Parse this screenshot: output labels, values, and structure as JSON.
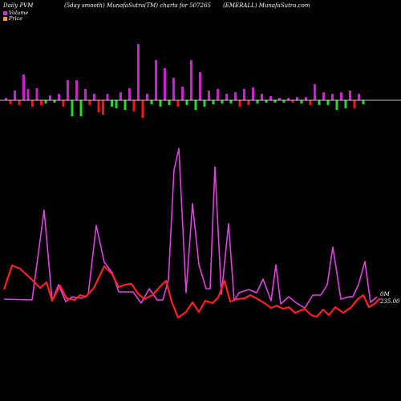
{
  "header": {
    "left": "Daily PVM",
    "center": "(5day smooth) MunafaSutra(TM) charts for 507265",
    "right": "(EMERALL) MunafaSutra.com"
  },
  "legend": {
    "volume_label": "Volume",
    "volume_color": "#cc33cc",
    "price_label": "Price",
    "price_color": "#ff9933"
  },
  "colors": {
    "background": "#000000",
    "volume_line": "#dd44dd",
    "price_line": "#ff2222",
    "bar_up": "#cc22cc",
    "bar_down": "#ff1111",
    "bar_green": "#22dd22",
    "baseline": "#ffffff"
  },
  "chart_data": {
    "type": "line",
    "price_label_text": "0M",
    "price_value_text": "235.00",
    "bars": [
      {
        "v": 3,
        "c": "up"
      },
      {
        "v": -5,
        "c": "down"
      },
      {
        "v": 12,
        "c": "up"
      },
      {
        "v": -6,
        "c": "down"
      },
      {
        "v": 32,
        "c": "up"
      },
      {
        "v": 14,
        "c": "up"
      },
      {
        "v": -8,
        "c": "down"
      },
      {
        "v": 15,
        "c": "up"
      },
      {
        "v": -6,
        "c": "down"
      },
      {
        "v": -4,
        "c": "green"
      },
      {
        "v": 6,
        "c": "up"
      },
      {
        "v": -3,
        "c": "green"
      },
      {
        "v": 8,
        "c": "up"
      },
      {
        "v": -8,
        "c": "down"
      },
      {
        "v": 25,
        "c": "up"
      },
      {
        "v": -20,
        "c": "green"
      },
      {
        "v": 25,
        "c": "up"
      },
      {
        "v": -20,
        "c": "green"
      },
      {
        "v": 14,
        "c": "up"
      },
      {
        "v": -6,
        "c": "down"
      },
      {
        "v": 8,
        "c": "up"
      },
      {
        "v": -15,
        "c": "down"
      },
      {
        "v": -18,
        "c": "down"
      },
      {
        "v": 8,
        "c": "up"
      },
      {
        "v": -8,
        "c": "green"
      },
      {
        "v": -10,
        "c": "green"
      },
      {
        "v": 10,
        "c": "up"
      },
      {
        "v": -12,
        "c": "green"
      },
      {
        "v": 15,
        "c": "up"
      },
      {
        "v": -14,
        "c": "down"
      },
      {
        "v": 70,
        "c": "up"
      },
      {
        "v": -22,
        "c": "down"
      },
      {
        "v": 8,
        "c": "up"
      },
      {
        "v": -5,
        "c": "green"
      },
      {
        "v": 50,
        "c": "up"
      },
      {
        "v": -8,
        "c": "green"
      },
      {
        "v": 40,
        "c": "up"
      },
      {
        "v": -6,
        "c": "green"
      },
      {
        "v": 28,
        "c": "up"
      },
      {
        "v": -8,
        "c": "down"
      },
      {
        "v": 17,
        "c": "up"
      },
      {
        "v": -6,
        "c": "green"
      },
      {
        "v": 50,
        "c": "up"
      },
      {
        "v": -12,
        "c": "green"
      },
      {
        "v": 35,
        "c": "up"
      },
      {
        "v": -8,
        "c": "green"
      },
      {
        "v": 12,
        "c": "up"
      },
      {
        "v": -5,
        "c": "green"
      },
      {
        "v": 14,
        "c": "up"
      },
      {
        "v": -4,
        "c": "green"
      },
      {
        "v": 8,
        "c": "up"
      },
      {
        "v": -4,
        "c": "green"
      },
      {
        "v": 10,
        "c": "up"
      },
      {
        "v": -8,
        "c": "down"
      },
      {
        "v": 14,
        "c": "up"
      },
      {
        "v": -6,
        "c": "down"
      },
      {
        "v": 16,
        "c": "up"
      },
      {
        "v": -4,
        "c": "green"
      },
      {
        "v": 8,
        "c": "up"
      },
      {
        "v": -3,
        "c": "green"
      },
      {
        "v": 5,
        "c": "up"
      },
      {
        "v": -3,
        "c": "green"
      },
      {
        "v": 3,
        "c": "up"
      },
      {
        "v": -3,
        "c": "green"
      },
      {
        "v": 3,
        "c": "up"
      },
      {
        "v": -3,
        "c": "down"
      },
      {
        "v": 4,
        "c": "up"
      },
      {
        "v": -4,
        "c": "green"
      },
      {
        "v": 4,
        "c": "up"
      },
      {
        "v": -6,
        "c": "down"
      },
      {
        "v": 20,
        "c": "up"
      },
      {
        "v": -6,
        "c": "green"
      },
      {
        "v": 10,
        "c": "up"
      },
      {
        "v": -6,
        "c": "green"
      },
      {
        "v": 8,
        "c": "up"
      },
      {
        "v": -12,
        "c": "green"
      },
      {
        "v": 10,
        "c": "up"
      },
      {
        "v": -10,
        "c": "green"
      },
      {
        "v": 12,
        "c": "up"
      },
      {
        "v": -10,
        "c": "down"
      },
      {
        "v": 8,
        "c": "up"
      },
      {
        "v": -5,
        "c": "green"
      }
    ],
    "volume_series": [
      [
        5,
        373
      ],
      [
        40,
        374
      ],
      [
        55,
        262
      ],
      [
        65,
        375
      ],
      [
        73,
        355
      ],
      [
        82,
        376
      ],
      [
        90,
        370
      ],
      [
        102,
        372
      ],
      [
        110,
        367
      ],
      [
        120,
        281
      ],
      [
        130,
        327
      ],
      [
        140,
        340
      ],
      [
        148,
        364
      ],
      [
        158,
        364
      ],
      [
        166,
        364
      ],
      [
        176,
        378
      ],
      [
        186,
        360
      ],
      [
        196,
        374
      ],
      [
        203,
        374
      ],
      [
        210,
        349
      ],
      [
        217,
        212
      ],
      [
        223,
        185
      ],
      [
        232,
        365
      ],
      [
        240,
        254
      ],
      [
        248,
        330
      ],
      [
        257,
        360
      ],
      [
        262,
        360
      ],
      [
        268,
        208
      ],
      [
        276,
        367
      ],
      [
        285,
        279
      ],
      [
        292,
        375
      ],
      [
        298,
        365
      ],
      [
        310,
        361
      ],
      [
        320,
        365
      ],
      [
        328,
        348
      ],
      [
        338,
        375
      ],
      [
        344,
        330
      ],
      [
        350,
        379
      ],
      [
        360,
        370
      ],
      [
        370,
        378
      ],
      [
        380,
        384
      ],
      [
        390,
        368
      ],
      [
        400,
        368
      ],
      [
        408,
        355
      ],
      [
        415,
        308
      ],
      [
        425,
        373
      ],
      [
        435,
        370
      ],
      [
        440,
        370
      ],
      [
        447,
        355
      ],
      [
        455,
        326
      ],
      [
        462,
        377
      ],
      [
        470,
        370
      ]
    ],
    "price_series": [
      [
        5,
        361
      ],
      [
        15,
        331
      ],
      [
        25,
        335
      ],
      [
        40,
        349
      ],
      [
        50,
        359
      ],
      [
        58,
        352
      ],
      [
        65,
        375
      ],
      [
        75,
        356
      ],
      [
        83,
        372
      ],
      [
        93,
        374
      ],
      [
        100,
        368
      ],
      [
        107,
        370
      ],
      [
        117,
        359
      ],
      [
        130,
        332
      ],
      [
        140,
        342
      ],
      [
        148,
        358
      ],
      [
        156,
        355
      ],
      [
        164,
        354
      ],
      [
        172,
        366
      ],
      [
        180,
        373
      ],
      [
        190,
        368
      ],
      [
        200,
        357
      ],
      [
        207,
        350
      ],
      [
        214,
        376
      ],
      [
        222,
        396
      ],
      [
        232,
        389
      ],
      [
        240,
        377
      ],
      [
        248,
        389
      ],
      [
        256,
        375
      ],
      [
        265,
        378
      ],
      [
        272,
        371
      ],
      [
        280,
        350
      ],
      [
        287,
        376
      ],
      [
        295,
        373
      ],
      [
        305,
        372
      ],
      [
        312,
        368
      ],
      [
        320,
        372
      ],
      [
        330,
        378
      ],
      [
        338,
        384
      ],
      [
        345,
        381
      ],
      [
        353,
        385
      ],
      [
        360,
        383
      ],
      [
        368,
        390
      ],
      [
        380,
        385
      ],
      [
        388,
        393
      ],
      [
        395,
        395
      ],
      [
        403,
        386
      ],
      [
        410,
        393
      ],
      [
        418,
        383
      ],
      [
        428,
        390
      ],
      [
        438,
        383
      ],
      [
        446,
        373
      ],
      [
        453,
        368
      ],
      [
        460,
        383
      ],
      [
        468,
        378
      ],
      [
        474,
        372
      ]
    ]
  }
}
